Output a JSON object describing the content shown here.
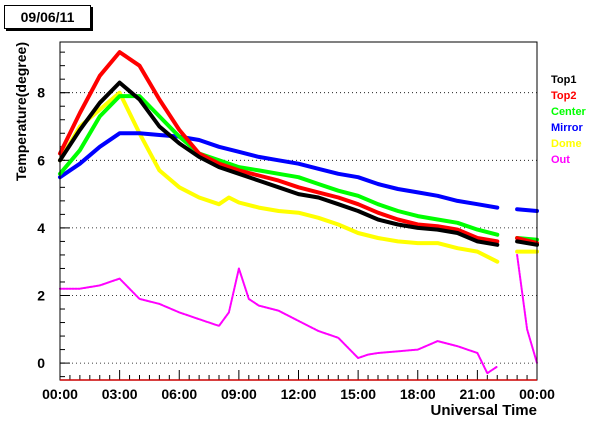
{
  "date_label": "09/06/11",
  "chart_data": {
    "type": "scatter",
    "xlabel": "Universal Time",
    "ylabel": "Temperature(degree)",
    "xlim": [
      0,
      24
    ],
    "ylim": [
      -0.5,
      9.5
    ],
    "x_ticks": [
      0,
      3,
      6,
      9,
      12,
      15,
      18,
      21,
      24
    ],
    "x_tick_labels": [
      "00:00",
      "03:00",
      "06:00",
      "09:00",
      "12:00",
      "15:00",
      "18:00",
      "21:00",
      "00:00"
    ],
    "y_ticks": [
      0,
      2,
      4,
      6,
      8
    ],
    "y_tick_labels": [
      "0",
      "2",
      "4",
      "6",
      "8"
    ],
    "grid": "horizontal dotted",
    "legend_position": "right",
    "series": [
      {
        "name": "Top1",
        "color": "#000000",
        "x": [
          0,
          1,
          2,
          3,
          4,
          5,
          6,
          7,
          8,
          9,
          10,
          11,
          12,
          13,
          14,
          15,
          16,
          17,
          18,
          19,
          20,
          21,
          22,
          22.6,
          23,
          24
        ],
        "y": [
          6.0,
          6.9,
          7.7,
          8.3,
          7.8,
          7.0,
          6.5,
          6.1,
          5.8,
          5.6,
          5.4,
          5.2,
          5.0,
          4.9,
          4.7,
          4.5,
          4.25,
          4.1,
          4.0,
          3.95,
          3.85,
          3.6,
          3.5,
          null,
          3.6,
          3.5
        ]
      },
      {
        "name": "Top2",
        "color": "#ff0000",
        "x": [
          0,
          1,
          2,
          3,
          4,
          5,
          6,
          7,
          8,
          9,
          10,
          11,
          12,
          13,
          14,
          15,
          16,
          17,
          18,
          19,
          20,
          21,
          22,
          22.6,
          23,
          24
        ],
        "y": [
          6.2,
          7.4,
          8.5,
          9.2,
          8.8,
          7.8,
          6.9,
          6.2,
          5.9,
          5.7,
          5.55,
          5.4,
          5.2,
          5.05,
          4.9,
          4.7,
          4.45,
          4.25,
          4.1,
          4.05,
          3.95,
          3.7,
          3.6,
          null,
          3.7,
          3.55
        ]
      },
      {
        "name": "Center",
        "color": "#00ff00",
        "x": [
          0,
          1,
          2,
          3,
          4,
          5,
          6,
          7,
          8,
          9,
          10,
          11,
          12,
          13,
          14,
          15,
          16,
          17,
          18,
          19,
          20,
          21,
          22,
          22.6,
          23,
          24
        ],
        "y": [
          5.6,
          6.3,
          7.3,
          7.9,
          7.9,
          7.3,
          6.7,
          6.2,
          6.0,
          5.8,
          5.7,
          5.6,
          5.5,
          5.3,
          5.1,
          4.95,
          4.7,
          4.5,
          4.35,
          4.25,
          4.15,
          3.95,
          3.8,
          null,
          3.7,
          3.65
        ]
      },
      {
        "name": "Mirror",
        "color": "#0000ff",
        "x": [
          0,
          1,
          2,
          3,
          4,
          5,
          6,
          7,
          8,
          9,
          10,
          11,
          12,
          13,
          14,
          15,
          16,
          17,
          18,
          19,
          20,
          21,
          22,
          22.6,
          23,
          24
        ],
        "y": [
          5.5,
          5.9,
          6.4,
          6.8,
          6.8,
          6.75,
          6.7,
          6.6,
          6.4,
          6.25,
          6.1,
          6.0,
          5.9,
          5.75,
          5.6,
          5.5,
          5.3,
          5.15,
          5.05,
          4.95,
          4.8,
          4.7,
          4.6,
          null,
          4.55,
          4.5
        ]
      },
      {
        "name": "Dome",
        "color": "#ffff00",
        "x": [
          0,
          1,
          2,
          3,
          4,
          5,
          6,
          7,
          8,
          8.5,
          9,
          10,
          11,
          12,
          13,
          14,
          15,
          16,
          17,
          18,
          19,
          20,
          21,
          22,
          22.6,
          23,
          24
        ],
        "y": [
          6.0,
          7.0,
          7.5,
          8.0,
          6.8,
          5.7,
          5.2,
          4.9,
          4.7,
          4.9,
          4.75,
          4.6,
          4.5,
          4.45,
          4.3,
          4.1,
          3.85,
          3.7,
          3.6,
          3.55,
          3.55,
          3.4,
          3.3,
          3.0,
          null,
          3.3,
          3.3
        ]
      },
      {
        "name": "Out",
        "color": "#ff00ff",
        "x": [
          0,
          1,
          2,
          3,
          4,
          5,
          6,
          7,
          8,
          8.5,
          9,
          9.5,
          10,
          11,
          12,
          13,
          14,
          15,
          15.5,
          16,
          17,
          18,
          19,
          20,
          21,
          21.5,
          22,
          22.6,
          23,
          23.5,
          24
        ],
        "y": [
          2.2,
          2.2,
          2.3,
          2.5,
          1.9,
          1.75,
          1.5,
          1.3,
          1.1,
          1.5,
          2.8,
          1.9,
          1.7,
          1.55,
          1.25,
          0.95,
          0.75,
          0.15,
          0.25,
          0.3,
          0.35,
          0.4,
          0.65,
          0.5,
          0.3,
          -0.3,
          -0.1,
          null,
          3.2,
          1.0,
          0.0
        ]
      }
    ]
  }
}
